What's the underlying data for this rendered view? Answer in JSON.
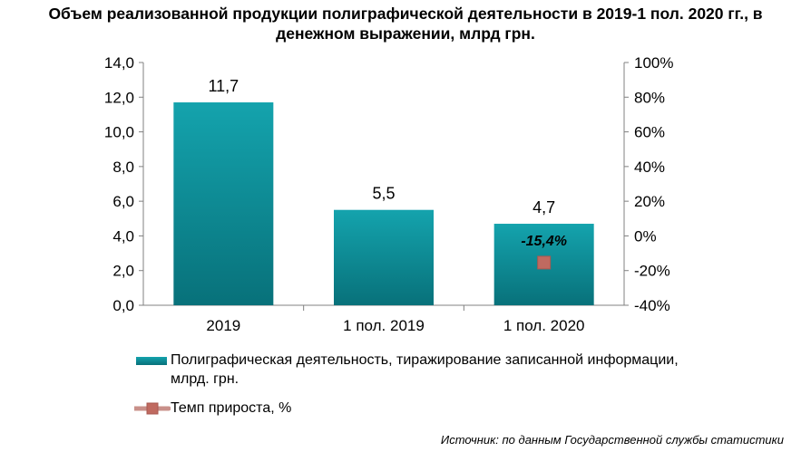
{
  "title_line1": "Объем реализованной продукции полиграфической деятельности в 2019-1 пол. 2020 гг., в",
  "title_line2": "денежном выражении, млрд грн.",
  "source": "Источник: по данным Государственной службы статистики",
  "colors": {
    "bar": "#14a3ad",
    "bar_dark": "#08717a",
    "marker": "#c06a60",
    "line": "#c9908a",
    "axis": "#808080"
  },
  "chart_data": {
    "type": "bar",
    "categories": [
      "2019",
      "1 пол. 2019",
      "1 пол. 2020"
    ],
    "series": [
      {
        "name": "Полиграфическая деятельность, тиражирование записанной информации, млрд. грн.",
        "values": [
          11.7,
          5.5,
          4.7
        ],
        "value_labels": [
          "11,7",
          "5,5",
          "4,7"
        ]
      },
      {
        "name": "Темп прироста, %",
        "type": "line",
        "axis": "right",
        "values": [
          null,
          null,
          -15.4
        ],
        "value_labels": [
          "",
          "",
          "-15,4%"
        ]
      }
    ],
    "ylim": [
      0,
      14
    ],
    "y_ticks": [
      "0,0",
      "2,0",
      "4,0",
      "6,0",
      "8,0",
      "10,0",
      "12,0",
      "14,0"
    ],
    "y2lim": [
      -40,
      100
    ],
    "y2_ticks": [
      "-40%",
      "-20%",
      "0%",
      "20%",
      "40%",
      "60%",
      "80%",
      "100%"
    ],
    "legend_position": "bottom",
    "grid": false
  }
}
